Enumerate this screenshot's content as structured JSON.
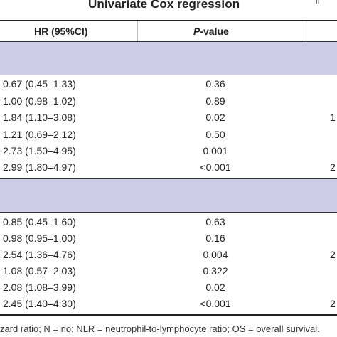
{
  "table": {
    "title": "Univariate Cox regression",
    "title_mark": "II",
    "headers": {
      "hr": "HR (95%CI)",
      "p_prefix": "P",
      "p_suffix": "-value"
    },
    "band_color": "#cecce6",
    "group1": [
      {
        "hr": "0.67 (0.45–1.33)",
        "p": "0.36",
        "edge": ""
      },
      {
        "hr": "1.00 (0.98–1.02)",
        "p": "0.89",
        "edge": ""
      },
      {
        "hr": "1.84 (1.10–3.08)",
        "p": "0.02",
        "edge": "1"
      },
      {
        "hr": "1.21 (0.69–2.12)",
        "p": "0.50",
        "edge": ""
      },
      {
        "hr": "2.73 (1.50–4.95)",
        "p": "0.001",
        "edge": ""
      },
      {
        "hr": "2.99 (1.80–4.97)",
        "p": "<0.001",
        "edge": "2"
      }
    ],
    "group2": [
      {
        "hr": "0.85 (0.45–1.60)",
        "p": "0.63",
        "edge": ""
      },
      {
        "hr": "0.98 (0.95–1.00)",
        "p": "0.16",
        "edge": ""
      },
      {
        "hr": "2.54 (1.36–4.76)",
        "p": "0.004",
        "edge": "2"
      },
      {
        "hr": "1.08 (0.57–2.03)",
        "p": "0.322",
        "edge": ""
      },
      {
        "hr": "2.08 (1.08–3.99)",
        "p": "0.02",
        "edge": ""
      },
      {
        "hr": "2.45 (1.40–4.30)",
        "p": "<0.001",
        "edge": "2"
      }
    ],
    "footnote": "zard ratio; N = no; NLR = neutrophil-to-lymphocyte ratio; OS = overall survival."
  }
}
